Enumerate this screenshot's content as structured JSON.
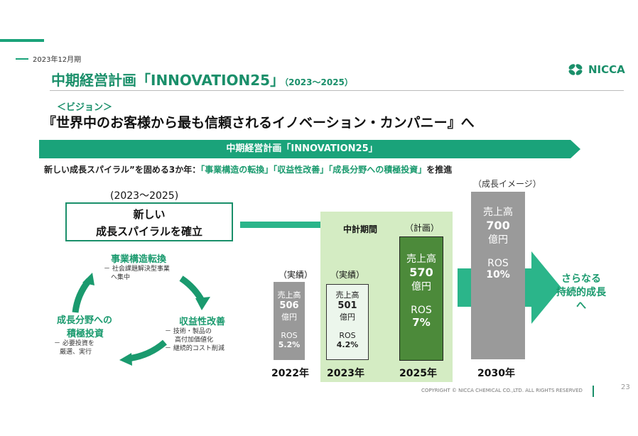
{
  "header": {
    "period": "2023年12月期",
    "title": "中期経営計画「INNOVATION25」",
    "title_sub": "（2023～2025）",
    "logo_text": "NICCA"
  },
  "vision": {
    "label": "＜ビジョン＞",
    "text": "『世界中のお客様から最も信頼されるイノベーション・カンパニー』へ"
  },
  "banner": {
    "text": "中期経営計画「INNOVATION25」"
  },
  "theme": {
    "prefix": "新しい成長スパイラル”を固める3か年：",
    "item1": "「事業構造の転換」",
    "item2": "「収益性改善」",
    "item3": "「成長分野への積極投資」",
    "suffix": "を推進"
  },
  "spiral": {
    "period": "(2023～2025)",
    "line1": "新しい",
    "line2": "成長スパイラルを確立"
  },
  "cycle": {
    "top": {
      "head": "事業構造転換",
      "notes": [
        "－ 社会課題解決型事業",
        "へ集中"
      ]
    },
    "right": {
      "head": "収益性改善",
      "notes": [
        "－ 技術・製品の",
        "高付加価値化",
        "－ 継続的コスト削減"
      ]
    },
    "left": {
      "head1": "成長分野への",
      "head2": "積極投資",
      "notes": [
        "－ 必要投資を",
        "厳選、実行"
      ]
    }
  },
  "bars": {
    "midterm_label": "中計期間",
    "plan_label": "（計画）",
    "actual_label": "（実績）",
    "growth_image_label": "（成長イメージ）",
    "sales_label": "売上高",
    "unit": "億円",
    "ros_label": "ROS",
    "y2022": {
      "year": "2022年",
      "sales": "506",
      "ros": "5.2%"
    },
    "y2023": {
      "year": "2023年",
      "sales": "501",
      "ros": "4.2%"
    },
    "y2025": {
      "year": "2025年",
      "sales": "570",
      "ros": "7%"
    },
    "y2030": {
      "year": "2030年",
      "sales": "700",
      "ros": "10%"
    }
  },
  "further_growth": {
    "line1": "さらなる",
    "line2": "持続的成長",
    "line3": "へ"
  },
  "footer": {
    "copyright": "COPYRIGHT © NICCA CHEMICAL CO.,LTD. ALL RIGHTS RESERVED",
    "page": "23"
  },
  "colors": {
    "accent": "#1a9a6e",
    "dark_green": "#4c8a3a",
    "light_green": "#d4ecc3",
    "gray": "#999999",
    "red": "#e8202a"
  }
}
